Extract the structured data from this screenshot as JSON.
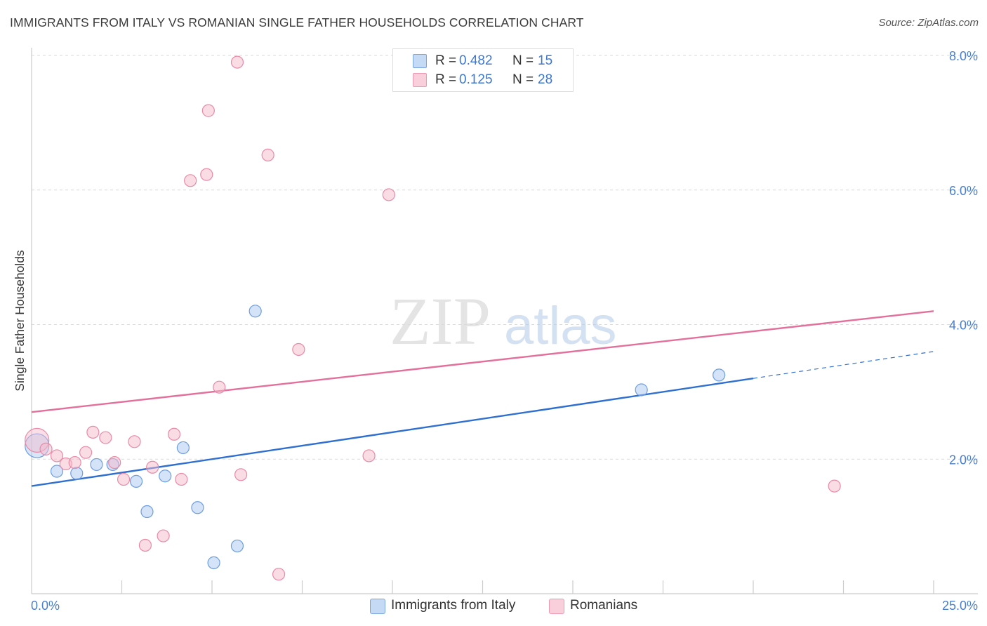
{
  "title": "IMMIGRANTS FROM ITALY VS ROMANIAN SINGLE FATHER HOUSEHOLDS CORRELATION CHART",
  "source": "Source: ZipAtlas.com",
  "watermark": {
    "zip": "ZIP",
    "atlas": "atlas"
  },
  "colors": {
    "blue_fill": "#a9c8f0",
    "blue_stroke": "#6d9ee0",
    "blue_line": "#2f6fd0",
    "pink_fill": "#f6b9cb",
    "pink_stroke": "#e98aa7",
    "pink_line": "#e2709a",
    "grid": "#d9d9d9",
    "tick_text": "#4a7fcf"
  },
  "legend": {
    "rows": [
      {
        "r_label": "R =",
        "r_value": "0.482",
        "n_label": "N =",
        "n_value": "15",
        "swatch": "blue"
      },
      {
        "r_label": "R =",
        "r_value": "0.125",
        "n_label": "N =",
        "n_value": "28",
        "swatch": "pink"
      }
    ]
  },
  "bottom_legend": [
    {
      "label": "Immigrants from Italy",
      "swatch": "blue"
    },
    {
      "label": "Romanians",
      "swatch": "pink"
    }
  ],
  "chart_data": {
    "type": "scatter",
    "title": "IMMIGRANTS FROM ITALY VS ROMANIAN SINGLE FATHER HOUSEHOLDS CORRELATION CHART",
    "xlabel": "",
    "ylabel": "Single Father Households",
    "xlim": [
      0,
      25
    ],
    "ylim": [
      0,
      8
    ],
    "x_tick_labels": [
      "0.0%",
      "25.0%"
    ],
    "y_ticks": [
      2,
      4,
      6,
      8
    ],
    "y_tick_labels": [
      "2.0%",
      "4.0%",
      "6.0%",
      "8.0%"
    ],
    "grid": true,
    "series": [
      {
        "name": "Immigrants from Italy",
        "color": "blue",
        "points": [
          {
            "x": 0.15,
            "y": 2.2,
            "big": true
          },
          {
            "x": 0.7,
            "y": 1.82
          },
          {
            "x": 1.25,
            "y": 1.79
          },
          {
            "x": 1.8,
            "y": 1.92
          },
          {
            "x": 2.25,
            "y": 1.92
          },
          {
            "x": 2.9,
            "y": 1.67
          },
          {
            "x": 3.2,
            "y": 1.22
          },
          {
            "x": 3.7,
            "y": 1.75
          },
          {
            "x": 4.2,
            "y": 2.17
          },
          {
            "x": 4.6,
            "y": 1.28
          },
          {
            "x": 5.05,
            "y": 0.46
          },
          {
            "x": 5.7,
            "y": 0.71
          },
          {
            "x": 6.2,
            "y": 4.2
          },
          {
            "x": 16.9,
            "y": 3.03
          },
          {
            "x": 19.05,
            "y": 3.25
          }
        ],
        "trend": {
          "x0": 0,
          "y0": 1.6,
          "x1": 20.0,
          "y1": 3.2,
          "dash_to_x": 25.0,
          "dash_to_y": 3.6
        }
      },
      {
        "name": "Romanians",
        "color": "pink",
        "points": [
          {
            "x": 0.15,
            "y": 2.28,
            "big": true
          },
          {
            "x": 0.4,
            "y": 2.15
          },
          {
            "x": 0.7,
            "y": 2.05
          },
          {
            "x": 0.95,
            "y": 1.93
          },
          {
            "x": 1.2,
            "y": 1.95
          },
          {
            "x": 1.5,
            "y": 2.1
          },
          {
            "x": 1.7,
            "y": 2.4
          },
          {
            "x": 2.05,
            "y": 2.32
          },
          {
            "x": 2.3,
            "y": 1.95
          },
          {
            "x": 2.55,
            "y": 1.7
          },
          {
            "x": 2.85,
            "y": 2.26
          },
          {
            "x": 3.15,
            "y": 0.72
          },
          {
            "x": 3.35,
            "y": 1.88
          },
          {
            "x": 3.65,
            "y": 0.86
          },
          {
            "x": 3.95,
            "y": 2.37
          },
          {
            "x": 4.15,
            "y": 1.7
          },
          {
            "x": 4.4,
            "y": 6.14
          },
          {
            "x": 4.85,
            "y": 6.23
          },
          {
            "x": 4.9,
            "y": 7.18
          },
          {
            "x": 5.2,
            "y": 3.07
          },
          {
            "x": 5.8,
            "y": 1.77
          },
          {
            "x": 5.7,
            "y": 7.9
          },
          {
            "x": 6.55,
            "y": 6.52
          },
          {
            "x": 6.85,
            "y": 0.29
          },
          {
            "x": 7.4,
            "y": 3.63
          },
          {
            "x": 9.35,
            "y": 2.05
          },
          {
            "x": 9.9,
            "y": 5.93
          },
          {
            "x": 22.25,
            "y": 1.6
          }
        ],
        "trend": {
          "x0": 0,
          "y0": 2.7,
          "x1": 25.0,
          "y1": 4.2
        }
      }
    ]
  }
}
